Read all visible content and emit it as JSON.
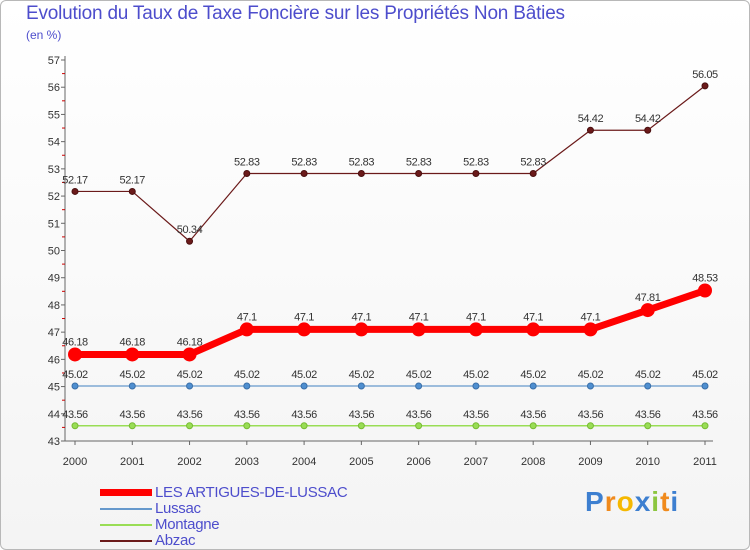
{
  "title": "Evolution du Taux de Taxe Foncière sur les Propriétés Non Bâties",
  "unit_label": "(en %)",
  "chart_data": {
    "type": "line",
    "title": "Evolution du Taux de Taxe Foncière sur les Propriétés Non Bâties",
    "ylabel": "(en %)",
    "xlabel": "",
    "x": [
      "2000",
      "2001",
      "2002",
      "2003",
      "2004",
      "2005",
      "2006",
      "2007",
      "2008",
      "2009",
      "2010",
      "2011"
    ],
    "ylim": [
      43,
      57
    ],
    "yticks": [
      43,
      44,
      45,
      46,
      47,
      48,
      49,
      50,
      51,
      52,
      53,
      54,
      55,
      56,
      57
    ],
    "grid": false,
    "series": [
      {
        "name": "LES ARTIGUES-DE-LUSSAC",
        "color": "#ff0000",
        "values": [
          46.18,
          46.18,
          46.18,
          47.1,
          47.1,
          47.1,
          47.1,
          47.1,
          47.1,
          47.1,
          47.81,
          48.53
        ],
        "labels": [
          "46.18",
          "46.18",
          "46.18",
          "47.1",
          "47.1",
          "47.1",
          "47.1",
          "47.1",
          "47.1",
          "47.1",
          "47.81",
          "48.53"
        ]
      },
      {
        "name": "Lussac",
        "color": "#6699cc",
        "values": [
          45.02,
          45.02,
          45.02,
          45.02,
          45.02,
          45.02,
          45.02,
          45.02,
          45.02,
          45.02,
          45.02,
          45.02
        ],
        "labels": [
          "45.02",
          "45.02",
          "45.02",
          "45.02",
          "45.02",
          "45.02",
          "45.02",
          "45.02",
          "45.02",
          "45.02",
          "45.02",
          "45.02"
        ]
      },
      {
        "name": "Montagne",
        "color": "#99dd55",
        "values": [
          43.56,
          43.56,
          43.56,
          43.56,
          43.56,
          43.56,
          43.56,
          43.56,
          43.56,
          43.56,
          43.56,
          43.56
        ],
        "labels": [
          "43.56",
          "43.56",
          "43.56",
          "43.56",
          "43.56",
          "43.56",
          "43.56",
          "43.56",
          "43.56",
          "43.56",
          "43.56",
          "43.56"
        ]
      },
      {
        "name": "Abzac",
        "color": "#6b1a1a",
        "values": [
          52.17,
          52.17,
          50.34,
          52.83,
          52.83,
          52.83,
          52.83,
          52.83,
          52.83,
          54.42,
          54.42,
          56.05
        ],
        "labels": [
          "52.17",
          "52.17",
          "50.34",
          "52.83",
          "52.83",
          "52.83",
          "52.83",
          "52.83",
          "52.83",
          "54.42",
          "54.42",
          "56.05"
        ]
      }
    ],
    "legend": [
      "LES ARTIGUES-DE-LUSSAC",
      "Lussac",
      "Montagne",
      "Abzac"
    ],
    "legend_position": "bottom-left"
  },
  "logo": {
    "letters": [
      "P",
      "r",
      "o",
      "x",
      "i",
      "t",
      "i"
    ]
  }
}
